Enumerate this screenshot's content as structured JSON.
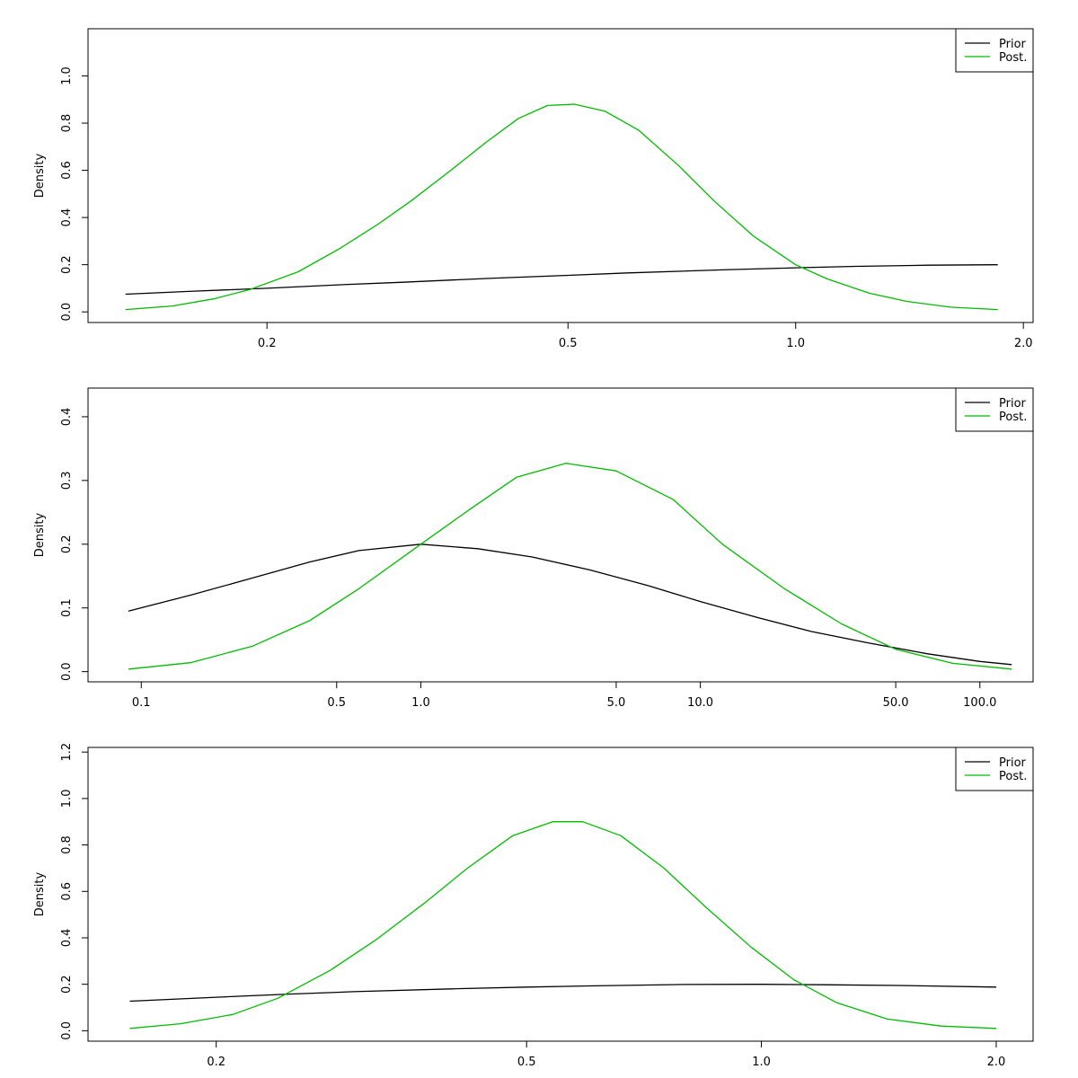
{
  "chart_data": [
    {
      "type": "line",
      "title": "",
      "xlabel": "",
      "ylabel": "Density",
      "x_scale": "log",
      "xlim": [
        0.116,
        2.06
      ],
      "ylim": [
        -0.045,
        1.2
      ],
      "x_ticks": [
        0.2,
        0.5,
        1.0,
        2.0
      ],
      "x_tick_labels": [
        "0.2",
        "0.5",
        "1.0",
        "2.0"
      ],
      "y_ticks": [
        0.0,
        0.2,
        0.4,
        0.6,
        0.8,
        1.0
      ],
      "y_tick_labels": [
        "0.0",
        "0.2",
        "0.4",
        "0.6",
        "0.8",
        "1.0"
      ],
      "legend": {
        "position": "top-right",
        "entries": [
          "Prior",
          "Post."
        ]
      },
      "series": [
        {
          "name": "Prior",
          "color": "#000000",
          "x": [
            0.13,
            0.16,
            0.2,
            0.25,
            0.3,
            0.4,
            0.5,
            0.6,
            0.8,
            1.0,
            1.2,
            1.5,
            1.85
          ],
          "y": [
            0.075,
            0.088,
            0.1,
            0.115,
            0.125,
            0.143,
            0.155,
            0.165,
            0.178,
            0.187,
            0.193,
            0.198,
            0.2
          ]
        },
        {
          "name": "Post.",
          "color": "#00bb00",
          "x": [
            0.13,
            0.15,
            0.17,
            0.19,
            0.22,
            0.25,
            0.28,
            0.31,
            0.35,
            0.39,
            0.43,
            0.47,
            0.51,
            0.56,
            0.62,
            0.7,
            0.78,
            0.88,
            1.0,
            1.1,
            1.25,
            1.4,
            1.6,
            1.85
          ],
          "y": [
            0.01,
            0.025,
            0.055,
            0.095,
            0.17,
            0.27,
            0.37,
            0.47,
            0.6,
            0.72,
            0.82,
            0.875,
            0.88,
            0.85,
            0.77,
            0.62,
            0.47,
            0.32,
            0.2,
            0.14,
            0.08,
            0.045,
            0.02,
            0.01
          ]
        }
      ]
    },
    {
      "type": "line",
      "title": "",
      "xlabel": "",
      "ylabel": "Density",
      "x_scale": "log",
      "xlim": [
        0.0645,
        155
      ],
      "ylim": [
        -0.016,
        0.445
      ],
      "x_ticks": [
        0.1,
        0.5,
        1.0,
        5.0,
        10.0,
        50.0,
        100.0
      ],
      "x_tick_labels": [
        "0.1",
        "0.5",
        "1.0",
        "5.0",
        "10.0",
        "50.0",
        "100.0"
      ],
      "y_ticks": [
        0.0,
        0.1,
        0.2,
        0.3,
        0.4
      ],
      "y_tick_labels": [
        "0.0",
        "0.1",
        "0.2",
        "0.3",
        "0.4"
      ],
      "legend": {
        "position": "top-right",
        "entries": [
          "Prior",
          "Post."
        ]
      },
      "series": [
        {
          "name": "Prior",
          "color": "#000000",
          "x": [
            0.09,
            0.15,
            0.25,
            0.4,
            0.6,
            1.0,
            1.6,
            2.5,
            4.0,
            6.5,
            10.0,
            16.0,
            25.0,
            40.0,
            65.0,
            100.0,
            130.0
          ],
          "y": [
            0.095,
            0.12,
            0.147,
            0.172,
            0.19,
            0.2,
            0.193,
            0.18,
            0.16,
            0.135,
            0.11,
            0.085,
            0.063,
            0.045,
            0.028,
            0.016,
            0.011
          ]
        },
        {
          "name": "Post.",
          "color": "#00bb00",
          "x": [
            0.09,
            0.15,
            0.25,
            0.4,
            0.6,
            1.0,
            1.5,
            2.2,
            3.3,
            5.0,
            8.0,
            12.0,
            20.0,
            32.0,
            50.0,
            80.0,
            130.0
          ],
          "y": [
            0.004,
            0.014,
            0.04,
            0.08,
            0.13,
            0.2,
            0.255,
            0.305,
            0.327,
            0.315,
            0.27,
            0.2,
            0.13,
            0.075,
            0.035,
            0.013,
            0.004
          ]
        }
      ]
    },
    {
      "type": "line",
      "title": "",
      "xlabel": "",
      "ylabel": "Density",
      "x_scale": "log",
      "xlim": [
        0.137,
        2.23
      ],
      "ylim": [
        -0.045,
        1.22
      ],
      "x_ticks": [
        0.2,
        0.5,
        1.0,
        2.0
      ],
      "x_tick_labels": [
        "0.2",
        "0.5",
        "1.0",
        "2.0"
      ],
      "y_ticks": [
        0.0,
        0.2,
        0.4,
        0.6,
        0.8,
        1.0,
        1.2
      ],
      "y_tick_labels": [
        "0.0",
        "0.2",
        "0.4",
        "0.6",
        "0.8",
        "1.0",
        "1.2"
      ],
      "legend": {
        "position": "top-right",
        "entries": [
          "Prior",
          "Post."
        ]
      },
      "series": [
        {
          "name": "Prior",
          "color": "#000000",
          "x": [
            0.155,
            0.2,
            0.25,
            0.3,
            0.4,
            0.5,
            0.6,
            0.8,
            1.0,
            1.2,
            1.5,
            2.0
          ],
          "y": [
            0.127,
            0.144,
            0.158,
            0.168,
            0.18,
            0.188,
            0.193,
            0.199,
            0.2,
            0.198,
            0.195,
            0.188
          ]
        },
        {
          "name": "Post.",
          "color": "#00bb00",
          "x": [
            0.155,
            0.18,
            0.21,
            0.24,
            0.28,
            0.32,
            0.37,
            0.42,
            0.48,
            0.54,
            0.59,
            0.66,
            0.75,
            0.85,
            0.97,
            1.1,
            1.25,
            1.45,
            1.7,
            2.0
          ],
          "y": [
            0.01,
            0.03,
            0.07,
            0.14,
            0.26,
            0.39,
            0.55,
            0.7,
            0.84,
            0.9,
            0.9,
            0.84,
            0.7,
            0.53,
            0.36,
            0.22,
            0.12,
            0.05,
            0.02,
            0.01
          ]
        }
      ]
    }
  ]
}
